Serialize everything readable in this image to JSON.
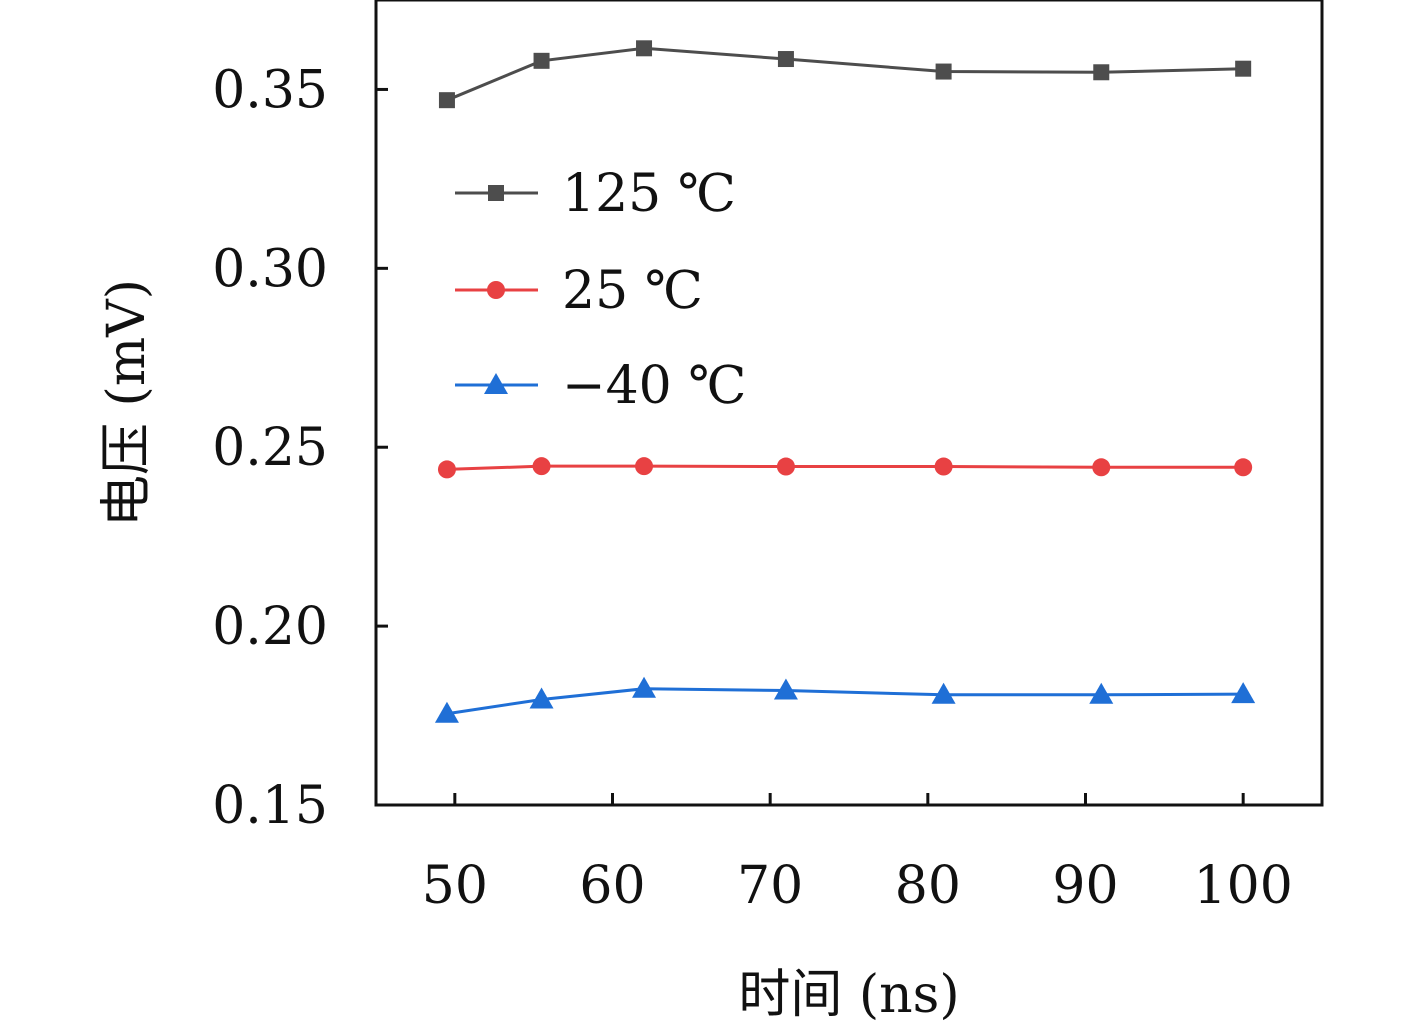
{
  "chart_data": {
    "type": "line",
    "xlabel": "时间 (ns)",
    "ylabel": "电压 (mV)",
    "x": [
      49.5,
      55.5,
      62,
      71,
      81,
      91,
      100
    ],
    "xlim": [
      45,
      105
    ],
    "ylim": [
      0.15,
      0.375
    ],
    "xticks": [
      50,
      60,
      70,
      80,
      90,
      100
    ],
    "xtick_labels": [
      "50",
      "60",
      "70",
      "80",
      "90",
      "100"
    ],
    "yticks": [
      0.15,
      0.2,
      0.25,
      0.3,
      0.35
    ],
    "ytick_labels": [
      "0.15",
      "0.20",
      "0.25",
      "0.30",
      "0.35"
    ],
    "legend_position": "upper-left",
    "grid": false,
    "series": [
      {
        "name": "125 ℃",
        "color": "#4d4d4d",
        "marker": "square",
        "values": [
          0.347,
          0.358,
          0.3615,
          0.3585,
          0.355,
          0.3548,
          0.3558
        ]
      },
      {
        "name": "25 ℃",
        "color": "#e84143",
        "marker": "circle",
        "values": [
          0.2438,
          0.2447,
          0.2447,
          0.2446,
          0.2446,
          0.2444,
          0.2444
        ]
      },
      {
        "name": "−40 ℃",
        "color": "#1f6fd6",
        "marker": "triangle",
        "values": [
          0.1755,
          0.1795,
          0.1825,
          0.182,
          0.1808,
          0.1808,
          0.181
        ]
      }
    ]
  }
}
